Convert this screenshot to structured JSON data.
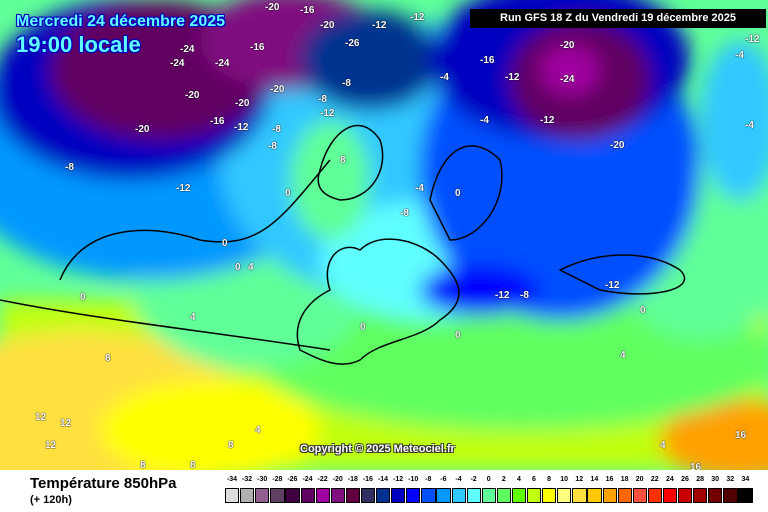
{
  "header": {
    "date": "Mercredi 24 décembre 2025",
    "time": "19:00 locale",
    "run": "Run GFS 18 Z du Vendredi 19 décembre 2025"
  },
  "map": {
    "copyright": "Copyright © 2025 Meteociel.fr",
    "temperature_labels": [
      "-20",
      "-16",
      "-20",
      "-26",
      "-12",
      "-12",
      "-24",
      "-24",
      "-24",
      "-20",
      "-20",
      "-20",
      "-16",
      "-12",
      "-8",
      "-8",
      "-12",
      "-8",
      "-20",
      "-16",
      "-24",
      "-20",
      "-12",
      "-16",
      "-12",
      "-20",
      "-8",
      "-12",
      "-4",
      "-8",
      "0",
      "-4",
      "-8",
      "-4",
      "0",
      "0",
      "4",
      "0",
      "0",
      "-12",
      "-8",
      "0",
      "4",
      "8",
      "8",
      "12",
      "12",
      "12",
      "8",
      "8",
      "4",
      "0",
      "-4",
      "-12",
      "4",
      "4",
      "8",
      "16",
      "16",
      "-12",
      "-4",
      "0"
    ]
  },
  "footer": {
    "parameter": "Température 850hPa",
    "forecast_step": "(+ 120h)"
  },
  "legend": {
    "labels": [
      "-34",
      "-32",
      "-30",
      "-28",
      "-26",
      "-24",
      "-22",
      "-20",
      "-18",
      "-16",
      "-14",
      "-12",
      "-10",
      "-8",
      "-6",
      "-4",
      "-2",
      "0",
      "2",
      "4",
      "6",
      "8",
      "10",
      "12",
      "14",
      "16",
      "18",
      "20",
      "22",
      "24",
      "26",
      "28",
      "30",
      "32",
      "34"
    ],
    "colors": [
      "#dddddd",
      "#b0b0b0",
      "#906090",
      "#604060",
      "#400040",
      "#600060",
      "#a000a0",
      "#801080",
      "#600040",
      "#303060",
      "#003090",
      "#0000c0",
      "#0000ff",
      "#0050ff",
      "#0098ff",
      "#30c8ff",
      "#60ffff",
      "#60ff98",
      "#60ff60",
      "#60ff00",
      "#c0ff10",
      "#ffff00",
      "#ffff80",
      "#ffe040",
      "#ffc800",
      "#ffa000",
      "#ff6800",
      "#ff5040",
      "#ff3000",
      "#ff0000",
      "#c80000",
      "#a00000",
      "#700000",
      "#500000",
      "#000000"
    ]
  }
}
